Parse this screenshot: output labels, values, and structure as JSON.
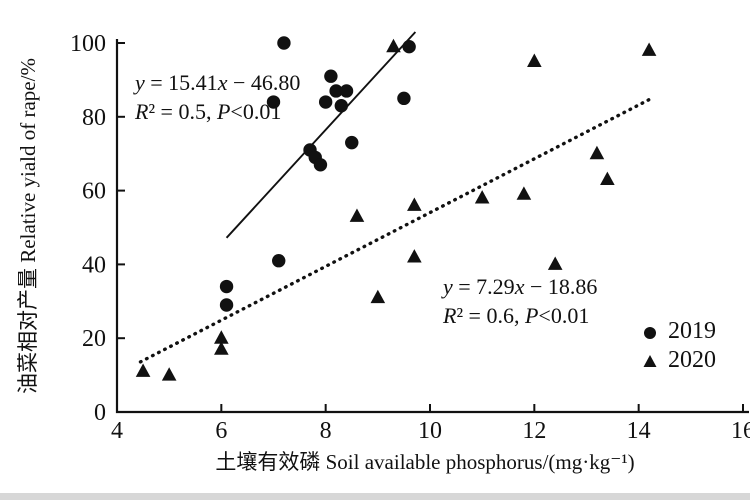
{
  "colors": {
    "foreground": "#111111",
    "background": "#ffffff"
  },
  "chart_data": {
    "type": "scatter",
    "title": "",
    "xlabel": "土壤有效磷 Soil available phosphorus/(mg·kg⁻¹)",
    "ylabel": "油菜相对产量 Relative yiald of rape/%",
    "xlim": [
      4,
      16
    ],
    "ylim": [
      0,
      100
    ],
    "x_ticks": [
      4,
      6,
      8,
      10,
      12,
      14,
      16
    ],
    "y_ticks": [
      0,
      20,
      40,
      60,
      80,
      100
    ],
    "grid": false,
    "legend_position": "inside-bottom-right",
    "series": [
      {
        "name": "2019",
        "marker": "circle",
        "color": "#111111",
        "points": [
          [
            7.2,
            100
          ],
          [
            9.6,
            99
          ],
          [
            8.1,
            91
          ],
          [
            8.2,
            87
          ],
          [
            8.4,
            87
          ],
          [
            9.5,
            85
          ],
          [
            7.0,
            84
          ],
          [
            8.0,
            84
          ],
          [
            8.3,
            83
          ],
          [
            8.5,
            73
          ],
          [
            7.7,
            71
          ],
          [
            7.8,
            69
          ],
          [
            7.9,
            67
          ],
          [
            7.1,
            41
          ],
          [
            6.1,
            34
          ],
          [
            6.1,
            29
          ]
        ]
      },
      {
        "name": "2020",
        "marker": "triangle",
        "color": "#111111",
        "points": [
          [
            4.5,
            11
          ],
          [
            5.0,
            10
          ],
          [
            6.0,
            20
          ],
          [
            6.0,
            17
          ],
          [
            8.6,
            53
          ],
          [
            9.0,
            31
          ],
          [
            9.3,
            99
          ],
          [
            9.7,
            56
          ],
          [
            9.7,
            42
          ],
          [
            11.0,
            58
          ],
          [
            11.8,
            59
          ],
          [
            12.0,
            95
          ],
          [
            12.4,
            40
          ],
          [
            13.2,
            70
          ],
          [
            13.4,
            63
          ],
          [
            14.2,
            98
          ]
        ]
      }
    ],
    "trendlines": [
      {
        "series": "2019",
        "style": "solid",
        "slope": 15.41,
        "intercept": -46.8,
        "x_range": [
          6.1,
          9.72
        ],
        "equation": "y = 15.41x − 46.80",
        "stats": "R² = 0.5, P<0.01"
      },
      {
        "series": "2020",
        "style": "dotted",
        "slope": 7.29,
        "intercept": -18.86,
        "x_range": [
          4.45,
          14.25
        ],
        "equation": "y = 7.29x − 18.86",
        "stats": "R² = 0.6, P<0.01"
      }
    ]
  },
  "annotations": {
    "eq2019_line1": "y = 15.41x − 46.80",
    "eq2019_line2": "R² = 0.5, P<0.01",
    "eq2020_line1": "y = 7.29x − 18.86",
    "eq2020_line2": "R² = 0.6, P<0.01"
  },
  "legend": {
    "items": [
      {
        "label": "2019",
        "marker": "circle"
      },
      {
        "label": "2020",
        "marker": "triangle"
      }
    ]
  }
}
